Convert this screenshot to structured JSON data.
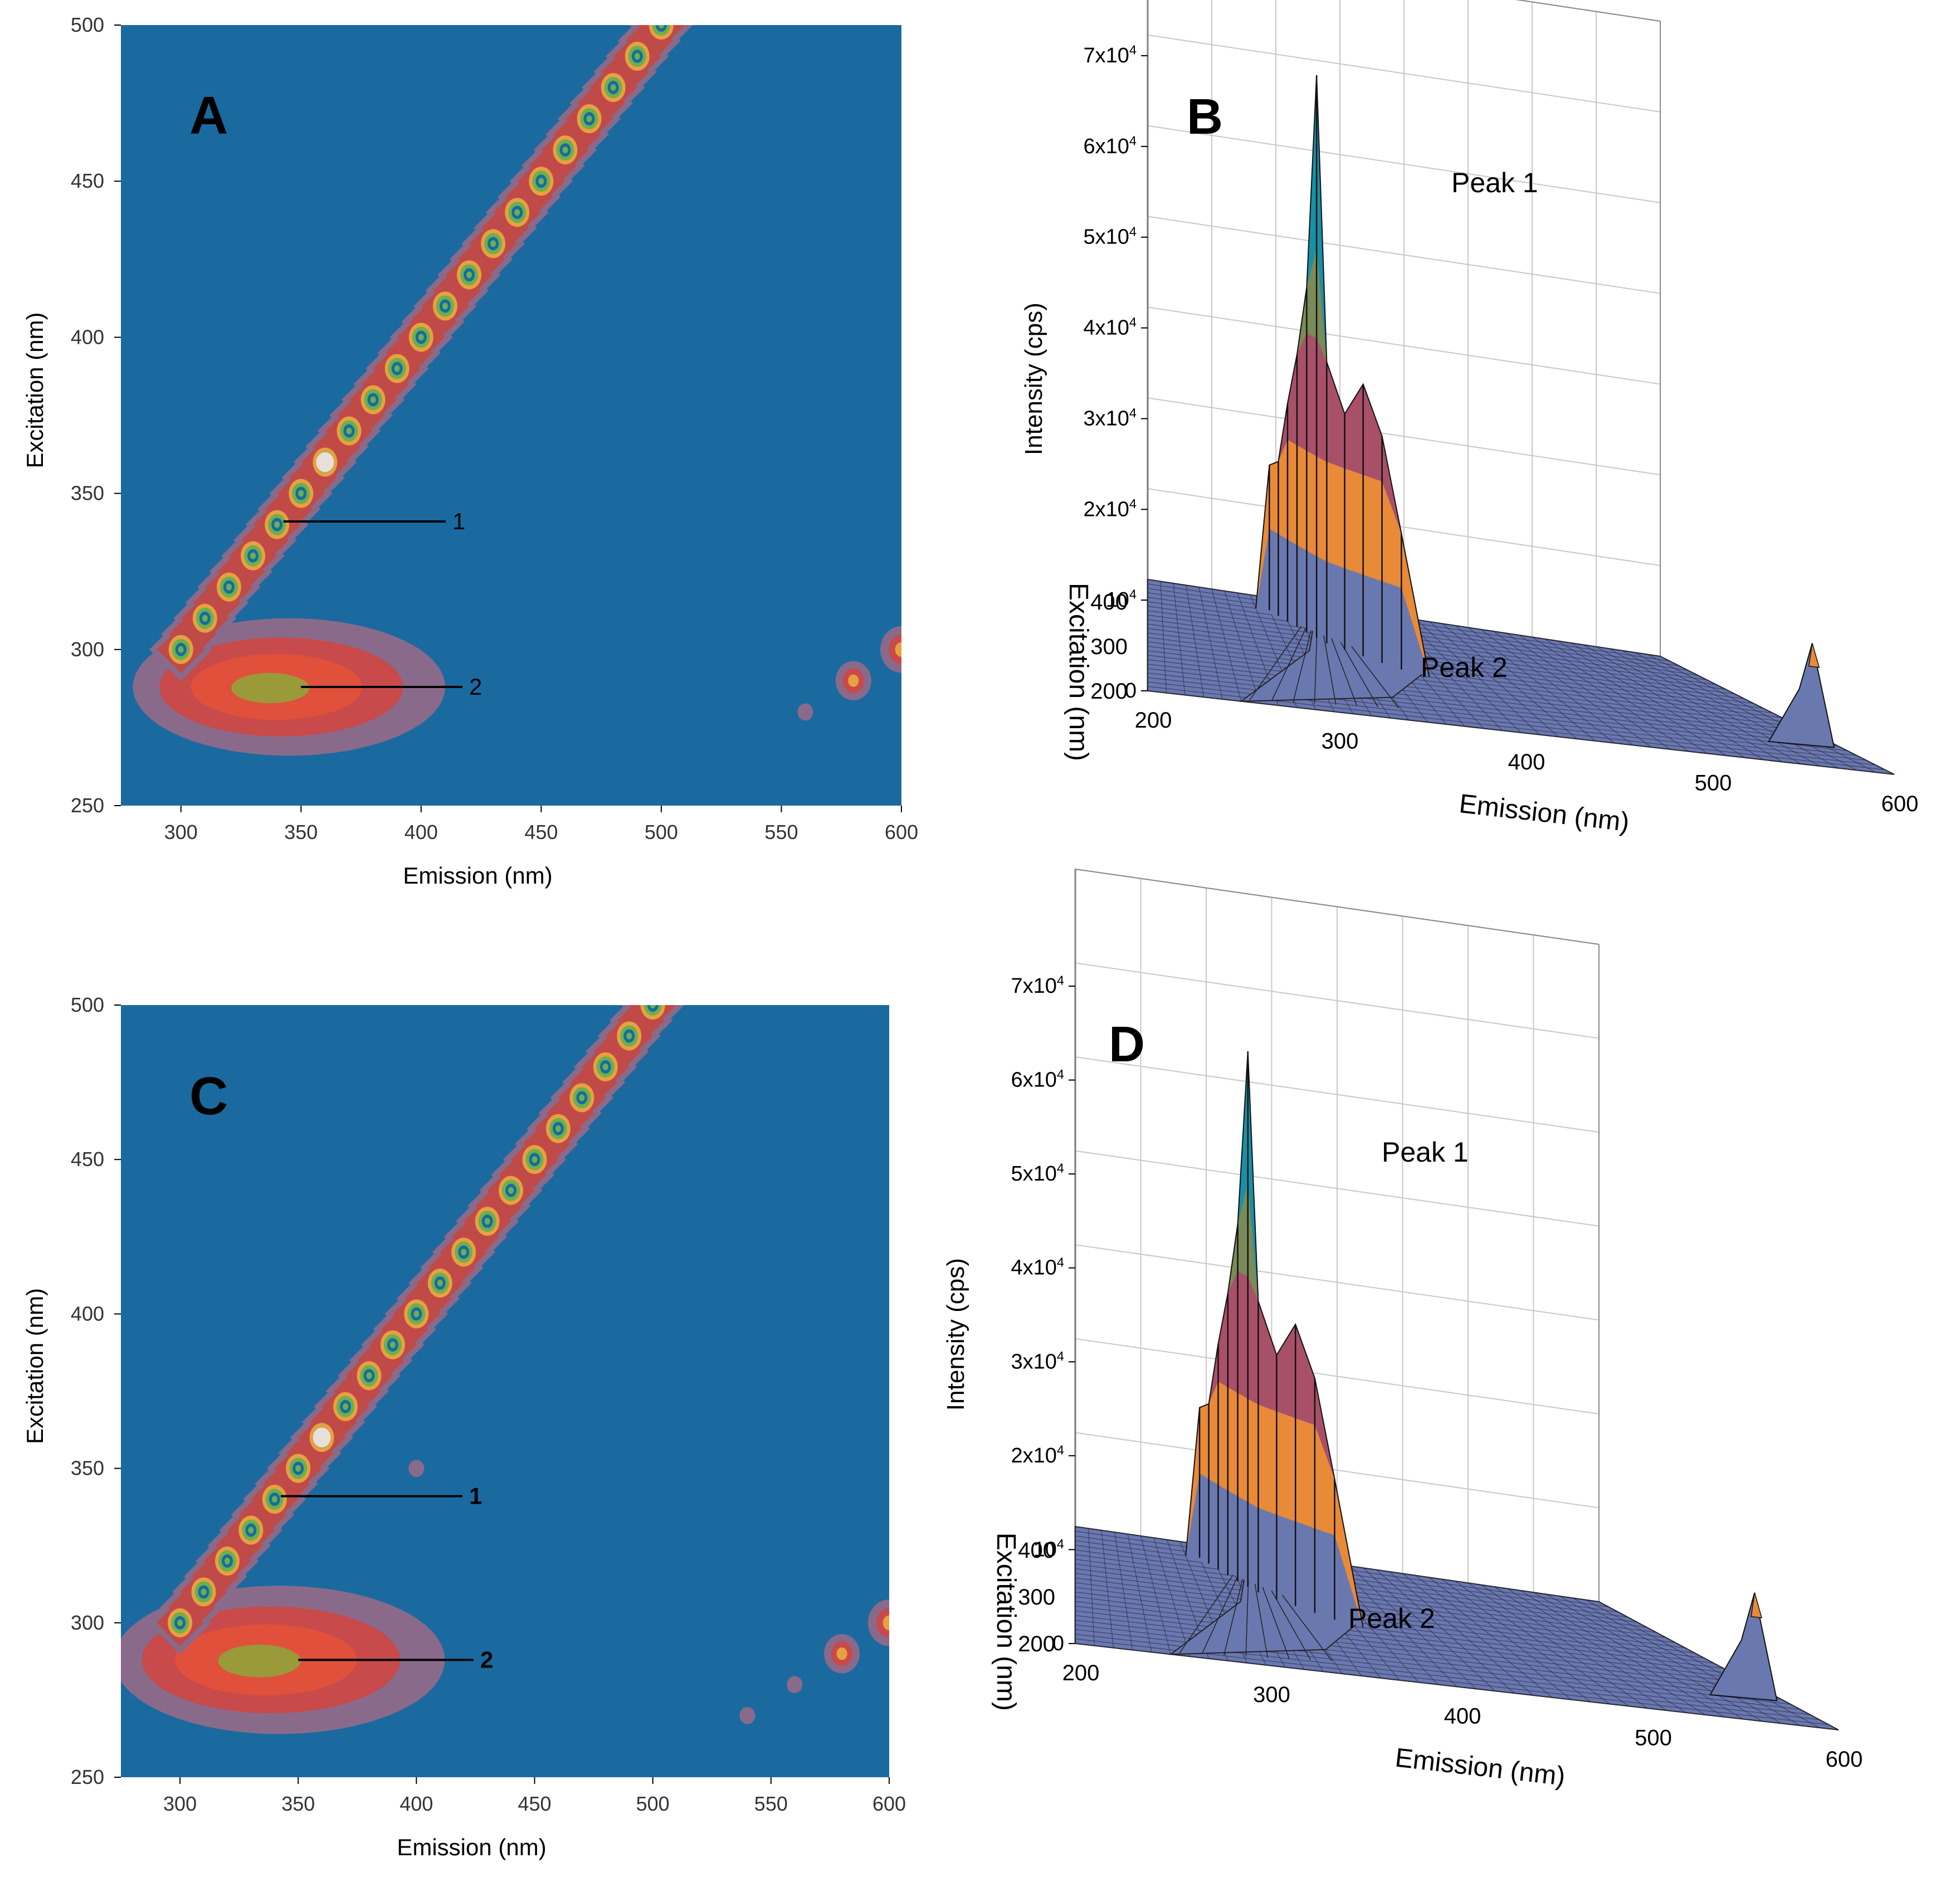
{
  "figure": {
    "description_panels": [
      "A",
      "B",
      "C",
      "D"
    ]
  },
  "chart_data": [
    {
      "panel": "A",
      "type": "heatmap",
      "subtype": "contour",
      "title": "",
      "xlabel": "Emission (nm)",
      "ylabel": "Excitation (nm)",
      "xlim": [
        275,
        600
      ],
      "ylim": [
        250,
        500
      ],
      "xticks": [
        300,
        350,
        400,
        450,
        500,
        550,
        600
      ],
      "yticks": [
        250,
        300,
        350,
        400,
        450,
        500
      ],
      "background_color": "#1a6aa0",
      "scatter_ridge": {
        "from_ex": 300,
        "to_ex": 500,
        "step": 10
      },
      "peaks": [
        {
          "label": "1",
          "em": 345,
          "ex": 341
        },
        {
          "label": "2",
          "em": 350,
          "ex": 288
        }
      ],
      "peak2_blob": {
        "em_center": 345,
        "ex_center": 288,
        "em_halfwidth": 65,
        "ex_halfwidth": 22
      },
      "small_features": [
        {
          "em": 580,
          "ex": 290
        },
        {
          "em": 560,
          "ex": 280
        },
        {
          "em": 600,
          "ex": 300
        }
      ]
    },
    {
      "panel": "B",
      "type": "surface3d",
      "title": "",
      "zlabel": "Intensity (cps)",
      "xlabel": "Emission (nm)",
      "ylabel": "Excitation (nm)",
      "zticks": [
        "0",
        "10^4",
        "2x10^4",
        "3x10^4",
        "4x10^4",
        "5x10^4",
        "6x10^4",
        "7x10^4"
      ],
      "xticks": [
        200,
        300,
        400,
        500,
        600
      ],
      "yticks": [
        200,
        300,
        400
      ],
      "annotations": [
        "Peak 1",
        "Peak 2"
      ],
      "peak1_max": 62000,
      "peak2_max": 9000
    },
    {
      "panel": "C",
      "type": "heatmap",
      "subtype": "contour",
      "title": "",
      "xlabel": "Emission (nm)",
      "ylabel": "Excitation (nm)",
      "xlim": [
        275,
        600
      ],
      "ylim": [
        250,
        500
      ],
      "xticks": [
        300,
        350,
        400,
        450,
        500,
        550,
        600
      ],
      "yticks": [
        250,
        300,
        350,
        400,
        450,
        500
      ],
      "background_color": "#1a6aa0",
      "scatter_ridge": {
        "from_ex": 300,
        "to_ex": 500,
        "step": 10
      },
      "peaks": [
        {
          "label": "1",
          "em": 345,
          "ex": 341
        },
        {
          "label": "2",
          "em": 350,
          "ex": 288
        }
      ],
      "peak2_blob": {
        "em_center": 342,
        "ex_center": 288,
        "em_halfwidth": 70,
        "ex_halfwidth": 24
      },
      "small_features": [
        {
          "em": 580,
          "ex": 290
        },
        {
          "em": 560,
          "ex": 280
        },
        {
          "em": 540,
          "ex": 270
        },
        {
          "em": 400,
          "ex": 350
        },
        {
          "em": 600,
          "ex": 300
        }
      ]
    },
    {
      "panel": "D",
      "type": "surface3d",
      "title": "",
      "zlabel": "Intensity (cps)",
      "xlabel": "Emission (nm)",
      "ylabel": "Excitation (nm)",
      "zticks": [
        "0",
        "10^4",
        "2x10^4",
        "3x10^4",
        "4x10^4",
        "5x10^4",
        "6x10^4",
        "7x10^4"
      ],
      "xticks": [
        200,
        300,
        400,
        500,
        600
      ],
      "yticks": [
        200,
        300,
        400
      ],
      "annotations": [
        "Peak 1",
        "Peak 2"
      ],
      "peak1_max": 57000,
      "peak2_max": 9000
    }
  ],
  "colors": {
    "background": "#1a6aa0",
    "contour_outer": "#8a6a8a",
    "contour_mid": "#c84a4a",
    "contour_inner": "#e0503a",
    "contour_core": "#9a9a3a",
    "ridge_outer": "#c04a48",
    "ridge_mid": "#e8a040",
    "ridge_green": "#6ab050",
    "ridge_core": "#e8e0d8",
    "surface_base": "#6a78b0",
    "surface_orange": "#e88a38",
    "surface_red": "#a85068",
    "surface_green": "#7a8a58",
    "surface_cyan": "#1890a8"
  }
}
